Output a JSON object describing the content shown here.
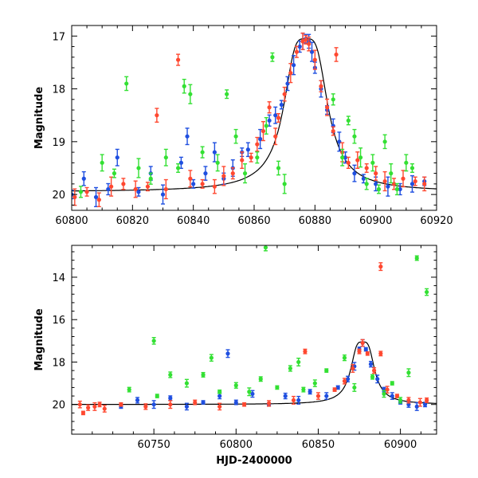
{
  "chart_data": [
    {
      "type": "scatter",
      "title": "",
      "xlabel": "",
      "ylabel": "Magnitude",
      "xlim": [
        60800,
        60920
      ],
      "ylim": [
        20.3,
        16.8
      ],
      "y_inverted": true,
      "x_ticks": [
        60800,
        60820,
        60840,
        60860,
        60880,
        60900,
        60920
      ],
      "x_tick_labels": [
        "60800",
        "60820",
        "60840",
        "60860",
        "60880",
        "60900",
        "60920"
      ],
      "y_ticks": [
        17,
        18,
        19,
        20
      ],
      "y_tick_labels": [
        "17",
        "18",
        "19",
        "20"
      ],
      "grid": false,
      "model_curve": {
        "peak_x": 60877,
        "peak_mag": 17.05,
        "base_mag": 19.95,
        "width": 6
      },
      "series": [
        {
          "color": "#1f4fe0",
          "points": [
            [
              60800,
              20.0
            ],
            [
              60804,
              19.7
            ],
            [
              60808,
              20.05
            ],
            [
              60812,
              19.9
            ],
            [
              60815,
              19.3
            ],
            [
              60822,
              19.95
            ],
            [
              60826,
              19.6
            ],
            [
              60830,
              20.0
            ],
            [
              60836,
              19.4
            ],
            [
              60838,
              18.9
            ],
            [
              60840,
              19.8
            ],
            [
              60844,
              19.6
            ],
            [
              60847,
              19.2
            ],
            [
              60850,
              19.7
            ],
            [
              60853,
              19.5
            ],
            [
              60856,
              19.2
            ],
            [
              60858,
              19.15
            ],
            [
              60862,
              18.95
            ],
            [
              60865,
              18.6
            ],
            [
              60867,
              18.5
            ],
            [
              60869,
              18.3
            ],
            [
              60871,
              17.9
            ],
            [
              60873,
              17.55
            ],
            [
              60875,
              17.2
            ],
            [
              60876,
              17.1
            ],
            [
              60877,
              17.05
            ],
            [
              60878,
              17.1
            ],
            [
              60879,
              17.3
            ],
            [
              60880,
              17.6
            ],
            [
              60882,
              18.0
            ],
            [
              60884,
              18.4
            ],
            [
              60886,
              18.7
            ],
            [
              60888,
              19.0
            ],
            [
              60890,
              19.3
            ],
            [
              60893,
              19.6
            ],
            [
              60896,
              19.7
            ],
            [
              60900,
              19.8
            ],
            [
              60904,
              19.85
            ],
            [
              60908,
              19.9
            ],
            [
              60912,
              19.8
            ],
            [
              60916,
              19.75
            ]
          ]
        },
        {
          "color": "#ff4830",
          "points": [
            [
              60801,
              20.05
            ],
            [
              60805,
              19.95
            ],
            [
              60809,
              20.1
            ],
            [
              60813,
              19.85
            ],
            [
              60817,
              19.8
            ],
            [
              60821,
              19.9
            ],
            [
              60825,
              19.85
            ],
            [
              60828,
              18.5
            ],
            [
              60831,
              19.9
            ],
            [
              60835,
              17.45
            ],
            [
              60839,
              19.7
            ],
            [
              60843,
              19.8
            ],
            [
              60847,
              19.85
            ],
            [
              60850,
              19.65
            ],
            [
              60853,
              19.6
            ],
            [
              60856,
              19.35
            ],
            [
              60859,
              19.3
            ],
            [
              60861,
              19.05
            ],
            [
              60863,
              18.8
            ],
            [
              60865,
              18.35
            ],
            [
              60867,
              18.9
            ],
            [
              60868,
              18.55
            ],
            [
              60870,
              18.1
            ],
            [
              60872,
              17.7
            ],
            [
              60874,
              17.3
            ],
            [
              60876,
              17.1
            ],
            [
              60877,
              17.07
            ],
            [
              60878,
              17.15
            ],
            [
              60880,
              17.45
            ],
            [
              60882,
              17.95
            ],
            [
              60884,
              18.35
            ],
            [
              60886,
              18.8
            ],
            [
              60887,
              17.35
            ],
            [
              60889,
              19.2
            ],
            [
              60891,
              19.4
            ],
            [
              60894,
              19.35
            ],
            [
              60897,
              19.5
            ],
            [
              60900,
              19.6
            ],
            [
              60903,
              19.75
            ],
            [
              60906,
              19.8
            ],
            [
              60909,
              19.7
            ],
            [
              60913,
              19.75
            ],
            [
              60916,
              19.8
            ]
          ]
        },
        {
          "color": "#33e033",
          "points": [
            [
              60803,
              19.95
            ],
            [
              60810,
              19.4
            ],
            [
              60814,
              19.6
            ],
            [
              60818,
              17.9
            ],
            [
              60822,
              19.5
            ],
            [
              60826,
              19.7
            ],
            [
              60831,
              19.3
            ],
            [
              60835,
              19.5
            ],
            [
              60837,
              17.95
            ],
            [
              60839,
              18.1
            ],
            [
              60843,
              19.2
            ],
            [
              60848,
              19.4
            ],
            [
              60851,
              18.1
            ],
            [
              60854,
              18.9
            ],
            [
              60857,
              19.6
            ],
            [
              60861,
              19.3
            ],
            [
              60864,
              18.7
            ],
            [
              60866,
              17.4
            ],
            [
              60868,
              19.5
            ],
            [
              60870,
              19.8
            ],
            [
              60886,
              18.2
            ],
            [
              60889,
              19.3
            ],
            [
              60891,
              18.6
            ],
            [
              60893,
              18.9
            ],
            [
              60895,
              19.3
            ],
            [
              60897,
              19.8
            ],
            [
              60899,
              19.4
            ],
            [
              60901,
              19.9
            ],
            [
              60903,
              19.0
            ],
            [
              60905,
              19.6
            ],
            [
              60907,
              19.9
            ],
            [
              60910,
              19.4
            ],
            [
              60912,
              19.5
            ]
          ]
        }
      ]
    },
    {
      "type": "scatter",
      "title": "",
      "xlabel": "HJD-2400000",
      "ylabel": "Magnitude",
      "xlim": [
        60700,
        60922
      ],
      "ylim": [
        21.4,
        12.5
      ],
      "y_inverted": true,
      "x_ticks": [
        60750,
        60800,
        60850,
        60900
      ],
      "x_tick_labels": [
        "60750",
        "60800",
        "60850",
        "60900"
      ],
      "y_ticks": [
        14,
        16,
        18,
        20
      ],
      "y_tick_labels": [
        "14",
        "16",
        "18",
        "20"
      ],
      "grid": false,
      "model_curve": {
        "peak_x": 60877,
        "peak_mag": 17.05,
        "base_mag": 20.0,
        "width": 6
      },
      "series": [
        {
          "color": "#1f4fe0",
          "points": [
            [
              60730,
              20.1
            ],
            [
              60740,
              19.8
            ],
            [
              60750,
              20.0
            ],
            [
              60760,
              19.7
            ],
            [
              60770,
              20.1
            ],
            [
              60780,
              19.9
            ],
            [
              60790,
              19.6
            ],
            [
              60795,
              17.6
            ],
            [
              60800,
              19.9
            ],
            [
              60810,
              19.5
            ],
            [
              60820,
              20.0
            ],
            [
              60830,
              19.6
            ],
            [
              60838,
              19.8
            ],
            [
              60845,
              19.4
            ],
            [
              60855,
              19.6
            ],
            [
              60862,
              19.2
            ],
            [
              60868,
              18.8
            ],
            [
              60872,
              18.2
            ],
            [
              60875,
              17.4
            ],
            [
              60877,
              17.1
            ],
            [
              60879,
              17.4
            ],
            [
              60882,
              18.1
            ],
            [
              60886,
              18.8
            ],
            [
              60890,
              19.3
            ],
            [
              60895,
              19.6
            ],
            [
              60900,
              19.9
            ],
            [
              60905,
              20.0
            ],
            [
              60910,
              20.1
            ],
            [
              60915,
              20.0
            ]
          ]
        },
        {
          "color": "#ff4830",
          "points": [
            [
              60705,
              20.0
            ],
            [
              60707,
              20.4
            ],
            [
              60710,
              20.15
            ],
            [
              60714,
              20.1
            ],
            [
              60717,
              20.0
            ],
            [
              60720,
              20.2
            ],
            [
              60730,
              20.0
            ],
            [
              60745,
              20.1
            ],
            [
              60760,
              20.0
            ],
            [
              60775,
              19.9
            ],
            [
              60790,
              20.1
            ],
            [
              60805,
              20.0
            ],
            [
              60820,
              19.95
            ],
            [
              60835,
              19.8
            ],
            [
              60842,
              17.5
            ],
            [
              60850,
              19.6
            ],
            [
              60860,
              19.3
            ],
            [
              60866,
              18.9
            ],
            [
              60871,
              18.3
            ],
            [
              60875,
              17.5
            ],
            [
              60877,
              17.1
            ],
            [
              60880,
              17.6
            ],
            [
              60884,
              18.4
            ],
            [
              60888,
              13.5
            ],
            [
              60888,
              17.6
            ],
            [
              60892,
              19.3
            ],
            [
              60898,
              19.6
            ],
            [
              60905,
              19.8
            ],
            [
              60912,
              19.9
            ],
            [
              60916,
              19.8
            ]
          ]
        },
        {
          "color": "#33e033",
          "points": [
            [
              60735,
              19.3
            ],
            [
              60750,
              17.0
            ],
            [
              60752,
              19.6
            ],
            [
              60760,
              18.6
            ],
            [
              60770,
              19.0
            ],
            [
              60780,
              18.6
            ],
            [
              60785,
              17.8
            ],
            [
              60790,
              19.4
            ],
            [
              60800,
              19.1
            ],
            [
              60808,
              19.4
            ],
            [
              60815,
              18.8
            ],
            [
              60818,
              12.6
            ],
            [
              60825,
              19.2
            ],
            [
              60833,
              18.3
            ],
            [
              60838,
              18.0
            ],
            [
              60841,
              19.3
            ],
            [
              60848,
              19.0
            ],
            [
              60855,
              18.4
            ],
            [
              60866,
              17.8
            ],
            [
              60872,
              19.2
            ],
            [
              60883,
              18.7
            ],
            [
              60890,
              19.5
            ],
            [
              60895,
              19.0
            ],
            [
              60900,
              19.8
            ],
            [
              60905,
              18.5
            ],
            [
              60910,
              13.1
            ],
            [
              60916,
              14.7
            ]
          ]
        }
      ]
    }
  ]
}
